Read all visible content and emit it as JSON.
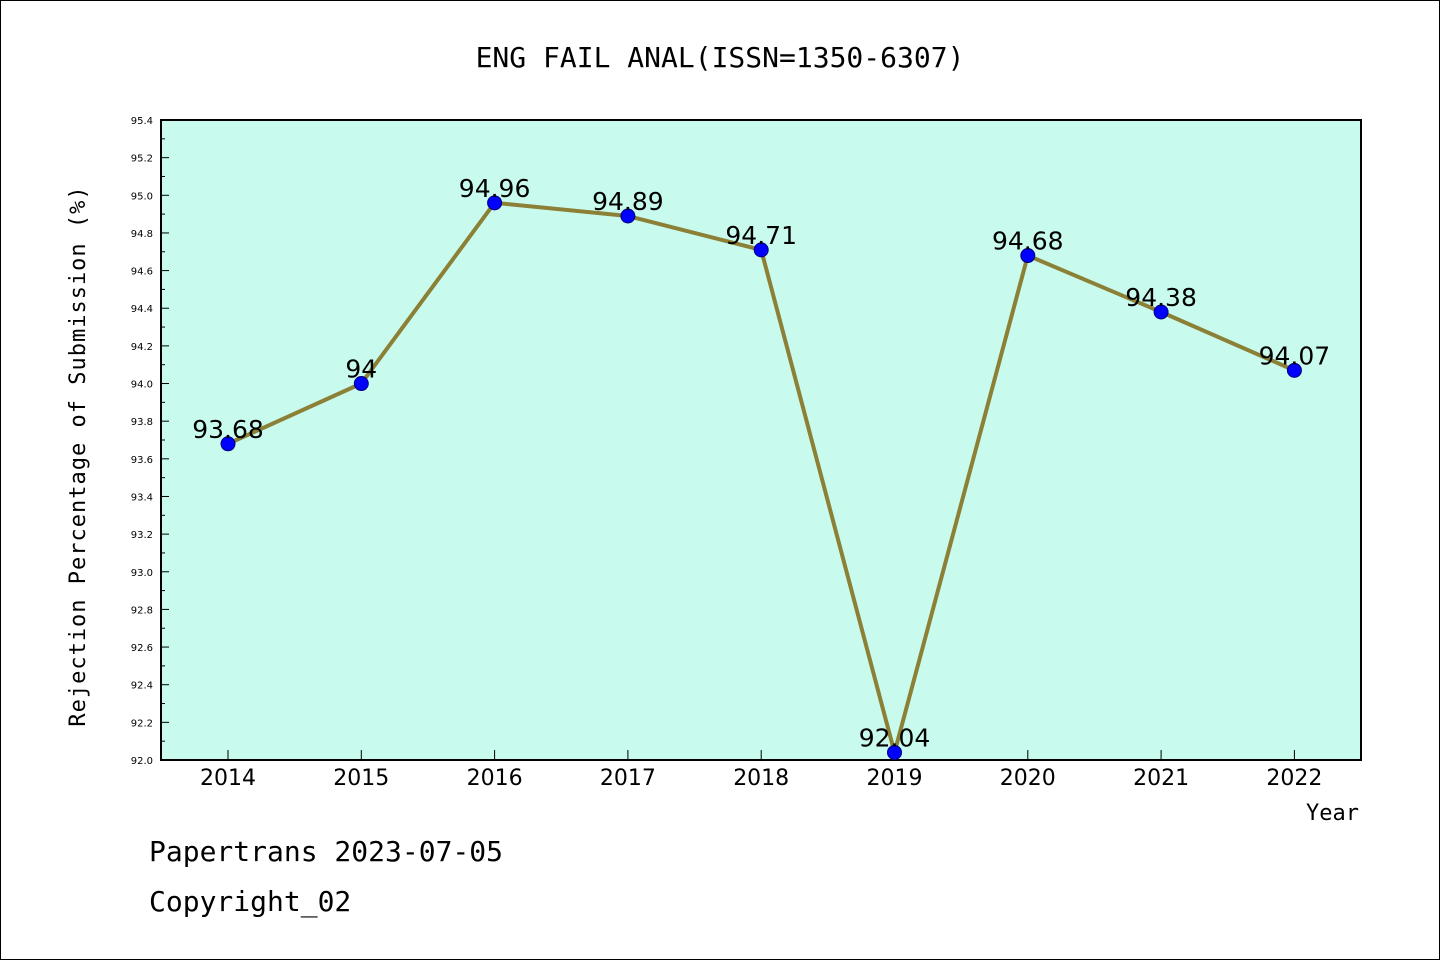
{
  "chart_data": {
    "type": "line",
    "title": "ENG FAIL ANAL(ISSN=1350-6307)",
    "xlabel": "Year",
    "ylabel": "Rejection Percentage of Submission (%)",
    "categories": [
      "2014",
      "2015",
      "2016",
      "2017",
      "2018",
      "2019",
      "2020",
      "2021",
      "2022"
    ],
    "values": [
      93.68,
      94,
      94.96,
      94.89,
      94.71,
      92.04,
      94.68,
      94.38,
      94.07
    ],
    "data_labels": [
      "93.68",
      "94",
      "94.96",
      "94.89",
      "94.71",
      "92.04",
      "94.68",
      "94.38",
      "94.07"
    ],
    "ylim": [
      92.0,
      95.4
    ],
    "yticks": [
      "92.0",
      "92.2",
      "92.4",
      "92.6",
      "92.8",
      "93.0",
      "93.2",
      "93.4",
      "93.6",
      "93.8",
      "94.0",
      "94.2",
      "94.4",
      "94.6",
      "94.8",
      "95.0",
      "95.2",
      "95.4"
    ],
    "grid": false,
    "colors": {
      "plot_background": "#c8fbee",
      "line": "#8b8035",
      "marker": "#0000ff"
    }
  },
  "footer": {
    "line1": "Papertrans 2023-07-05",
    "line2": "Copyright_02"
  }
}
